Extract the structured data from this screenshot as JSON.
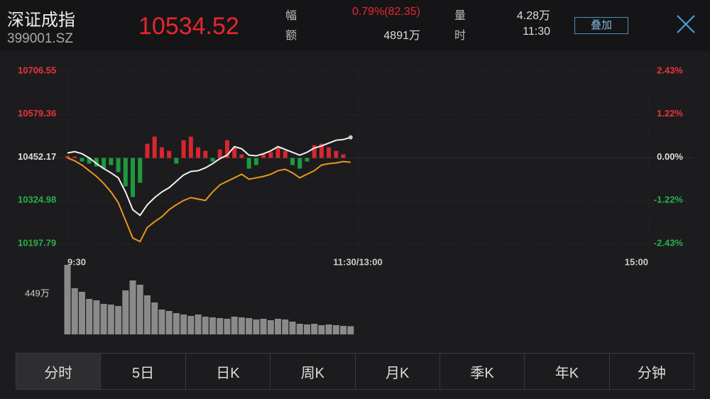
{
  "header": {
    "name": "深证成指",
    "code": "399001.SZ",
    "price": "10534.52",
    "stats": [
      [
        "幅",
        "0.79%(82.35)"
      ],
      [
        "额",
        "4891万"
      ],
      [
        "量",
        "4.28万"
      ],
      [
        "时",
        "11:30"
      ]
    ],
    "button": "叠加"
  },
  "chart_data": {
    "type": "line",
    "x": [
      0,
      3,
      6,
      9,
      12,
      15,
      18,
      21,
      24,
      27,
      30,
      33,
      36,
      39,
      42,
      45,
      48,
      51,
      54,
      57,
      60,
      63,
      66,
      69,
      72,
      75,
      78,
      81,
      84,
      87,
      90,
      93,
      96,
      99,
      102,
      105,
      108,
      111,
      114,
      117
    ],
    "xlim": [
      0,
      240
    ],
    "xticks": [
      {
        "value": 0,
        "label": "9:30"
      },
      {
        "value": 120,
        "label": "11:30/13:00"
      },
      {
        "value": 240,
        "label": "15:00"
      }
    ],
    "ylim": [
      10197.79,
      10706.55
    ],
    "yticks": [
      {
        "value": 10706.55,
        "label": "10706.55"
      },
      {
        "value": 10579.36,
        "label": "10579.36"
      },
      {
        "value": 10452.17,
        "label": "10452.17"
      },
      {
        "value": 10324.98,
        "label": "10324.98"
      },
      {
        "value": 10197.79,
        "label": "10197.79"
      }
    ],
    "y_right_labels": [
      "2.43%",
      "1.22%",
      "0.00%",
      "-1.22%",
      "-2.43%"
    ],
    "series": [
      {
        "color": "#f2f2f2",
        "values": [
          10466.8,
          10471,
          10464.7,
          10452.2,
          10435.5,
          10420.9,
          10408.3,
          10393.7,
          10351.9,
          10299.6,
          10282.9,
          10314.3,
          10335.2,
          10351.9,
          10364.5,
          10383.3,
          10402.1,
          10412.5,
          10414.6,
          10423,
          10435.5,
          10450.1,
          10460.5,
          10485.6,
          10479.3,
          10460.5,
          10458.4,
          10464.7,
          10473.1,
          10485.6,
          10477.2,
          10468.9,
          10460.5,
          10468.9,
          10481.4,
          10487.7,
          10496.1,
          10504.4,
          10506.5,
          10512.8
        ]
      },
      {
        "color": "#e8961e",
        "values": [
          10452.2,
          10443.8,
          10431.3,
          10414.6,
          10397.8,
          10376.9,
          10351.9,
          10320.5,
          10268.3,
          10216,
          10205.5,
          10247.3,
          10264.1,
          10278.7,
          10299.6,
          10314.3,
          10326.8,
          10335.2,
          10331,
          10326.8,
          10351.9,
          10372.8,
          10383.3,
          10393.7,
          10404.2,
          10389.5,
          10393.7,
          10397.8,
          10404.2,
          10414.6,
          10418.8,
          10408.3,
          10393.7,
          10404.2,
          10414.6,
          10431.3,
          10435.5,
          10437.6,
          10441.7,
          10439.6
        ]
      }
    ],
    "strength": [
      3,
      2,
      -5,
      -8,
      -12,
      -15,
      -10,
      -20,
      -40,
      -55,
      -35,
      20,
      30,
      15,
      10,
      -8,
      25,
      30,
      15,
      10,
      -5,
      12,
      25,
      15,
      5,
      -15,
      -10,
      5,
      8,
      15,
      10,
      -10,
      -15,
      -5,
      18,
      20,
      15,
      10,
      5,
      0
    ],
    "up_color": "#d8262f",
    "down_color": "#1e9a3e",
    "volume": {
      "color": "#8a8a8a",
      "values": [
        980,
        650,
        600,
        500,
        480,
        430,
        420,
        400,
        620,
        760,
        700,
        550,
        450,
        350,
        330,
        300,
        280,
        260,
        280,
        250,
        240,
        230,
        220,
        250,
        240,
        230,
        210,
        220,
        200,
        220,
        210,
        180,
        150,
        140,
        150,
        130,
        140,
        130,
        120,
        115
      ],
      "ylim": [
        0,
        1000
      ],
      "ticks": [
        {
          "value": 449,
          "label": "449万"
        }
      ]
    }
  },
  "tabs": [
    "分时",
    "5日",
    "日K",
    "周K",
    "月K",
    "季K",
    "年K",
    "分钟"
  ]
}
